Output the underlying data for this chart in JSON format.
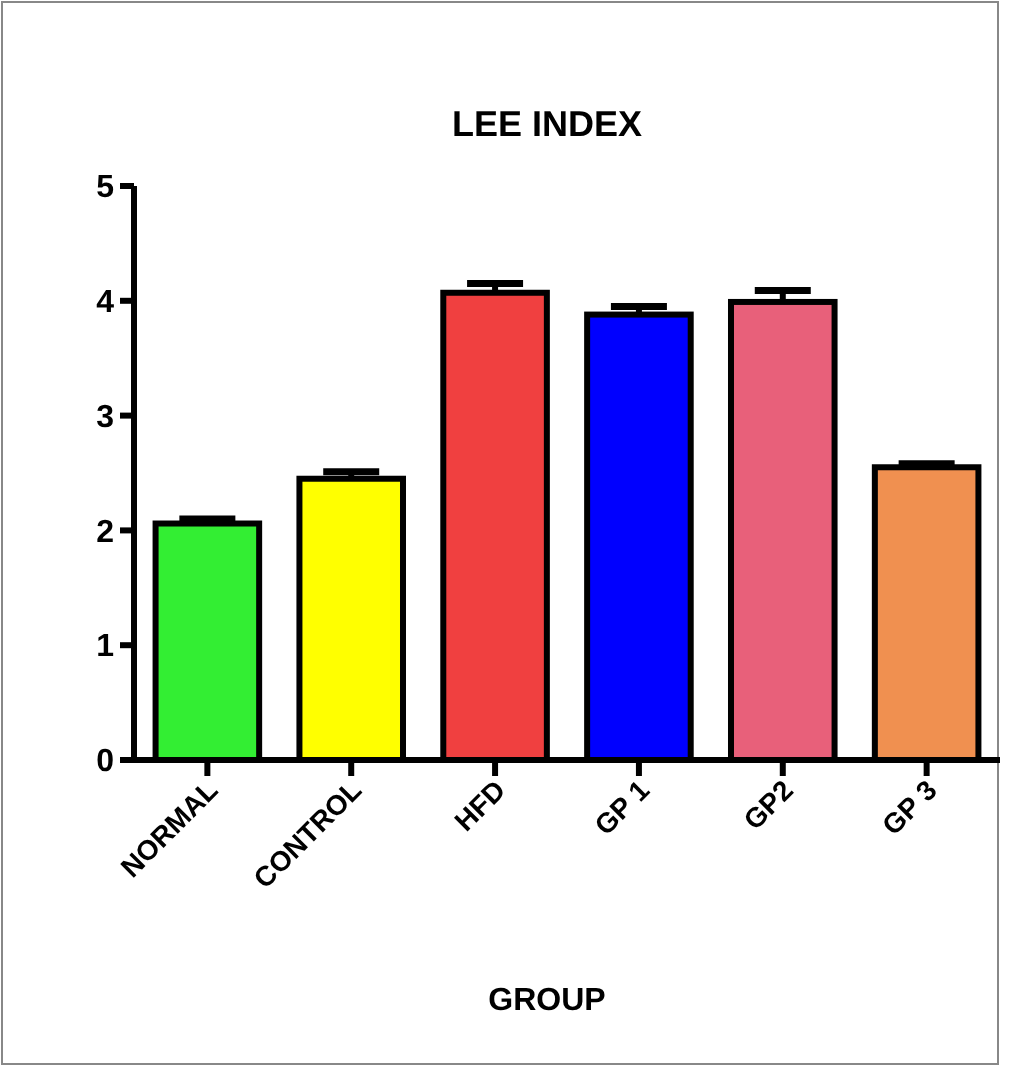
{
  "chart_data": {
    "type": "bar",
    "title": "LEE INDEX",
    "xlabel": "GROUP",
    "categories": [
      "NORMAL",
      "CONTROL",
      "HFD",
      "GP 1",
      "GP2",
      "GP 3"
    ],
    "values": [
      2.06,
      2.45,
      4.07,
      3.88,
      3.99,
      2.55
    ],
    "errors": [
      0.04,
      0.06,
      0.08,
      0.07,
      0.1,
      0.03
    ],
    "colors": [
      "#33ee33",
      "#ffff00",
      "#f04040",
      "#0000ff",
      "#e8607a",
      "#f09050"
    ],
    "ylim": [
      0,
      5
    ],
    "yticks": [
      0,
      1,
      2,
      3,
      4,
      5
    ],
    "grid": false
  }
}
